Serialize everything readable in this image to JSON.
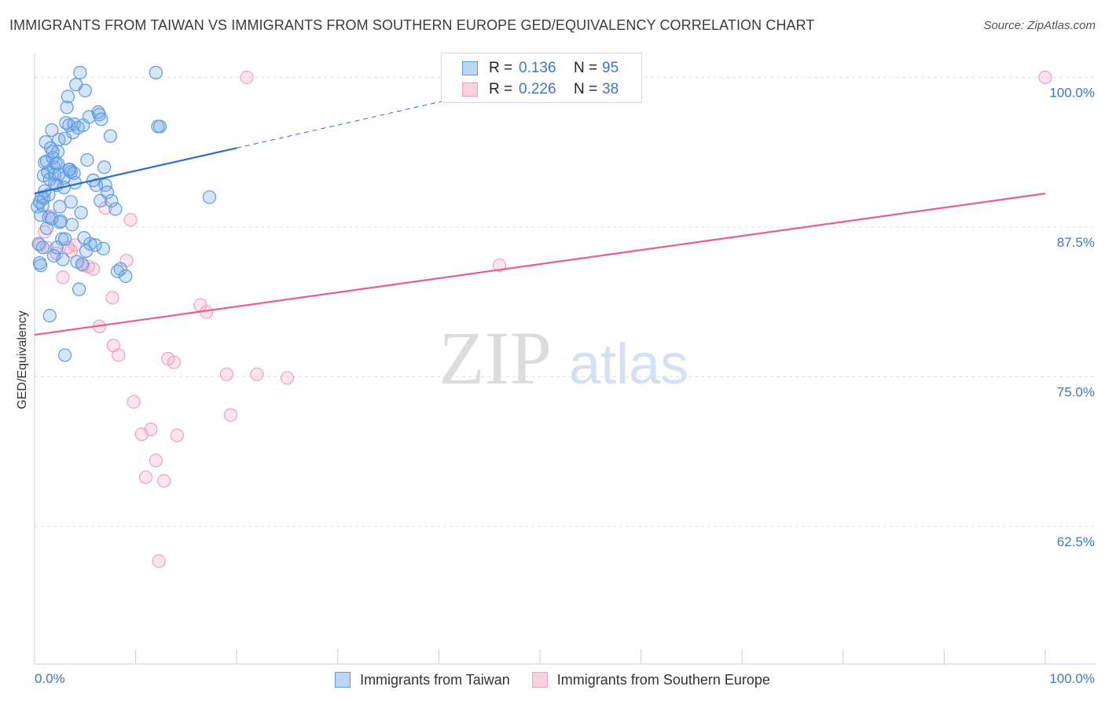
{
  "title": "IMMIGRANTS FROM TAIWAN VS IMMIGRANTS FROM SOUTHERN EUROPE GED/EQUIVALENCY CORRELATION CHART",
  "source": "Source: ZipAtlas.com",
  "watermark": {
    "zip": "ZIP",
    "atlas": "atlas"
  },
  "colors": {
    "taiwan": "#5b9be8",
    "taiwan_line": "#2a6fcc",
    "southern_europe": "#f2a0ba",
    "southern_europe_line": "#e5608e",
    "tick_label": "#3f77c8",
    "grid": "#e0e0e0"
  },
  "stats": [
    {
      "r_label": "R =",
      "r_value": "0.136",
      "n_label": "N =",
      "n_value": "95"
    },
    {
      "r_label": "R =",
      "r_value": "0.226",
      "n_label": "N =",
      "n_value": "38"
    }
  ],
  "legend": [
    "Immigrants from Taiwan",
    "Immigrants from Southern Europe"
  ],
  "chart_data": {
    "type": "scatter",
    "title": "IMMIGRANTS FROM TAIWAN VS IMMIGRANTS FROM SOUTHERN EUROPE GED/EQUIVALENCY CORRELATION CHART",
    "xlabel": "",
    "ylabel": "GED/Equivalency",
    "xlim": [
      0,
      100
    ],
    "ylim": [
      51,
      102
    ],
    "x_tick_labels": [
      "0.0%",
      "100.0%"
    ],
    "y_ticks": [
      62.5,
      75.0,
      87.5,
      100.0
    ],
    "y_tick_labels": [
      "62.5%",
      "75.0%",
      "87.5%",
      "100.0%"
    ],
    "grid": true,
    "legend_position": "bottom",
    "series": [
      {
        "name": "Immigrants from Taiwan",
        "trend": {
          "x": [
            0,
            20
          ],
          "y": [
            90.3,
            94.1
          ],
          "dashed_extension_to": [
            45,
            98.9
          ]
        },
        "points": [
          [
            0.3,
            89.2
          ],
          [
            0.5,
            84.5
          ],
          [
            0.4,
            86.1
          ],
          [
            0.6,
            88.5
          ],
          [
            0.7,
            90.0
          ],
          [
            0.8,
            89.3
          ],
          [
            0.9,
            91.8
          ],
          [
            1.0,
            92.9
          ],
          [
            1.1,
            94.6
          ],
          [
            1.2,
            93.0
          ],
          [
            1.3,
            92.1
          ],
          [
            1.4,
            88.3
          ],
          [
            1.5,
            91.5
          ],
          [
            1.6,
            94.1
          ],
          [
            1.7,
            95.6
          ],
          [
            1.8,
            93.3
          ],
          [
            1.9,
            92.5
          ],
          [
            2.0,
            91.9
          ],
          [
            2.1,
            92.8
          ],
          [
            2.2,
            91.0
          ],
          [
            2.3,
            93.8
          ],
          [
            2.4,
            94.8
          ],
          [
            2.5,
            89.2
          ],
          [
            2.6,
            88.0
          ],
          [
            2.7,
            86.5
          ],
          [
            2.8,
            84.8
          ],
          [
            2.9,
            91.6
          ],
          [
            3.0,
            94.9
          ],
          [
            3.1,
            96.2
          ],
          [
            3.2,
            97.5
          ],
          [
            3.3,
            98.4
          ],
          [
            3.4,
            96.0
          ],
          [
            3.5,
            92.3
          ],
          [
            3.6,
            89.6
          ],
          [
            3.7,
            87.7
          ],
          [
            3.8,
            95.4
          ],
          [
            3.9,
            96.1
          ],
          [
            4.1,
            99.4
          ],
          [
            4.0,
            91.2
          ],
          [
            4.3,
            95.8
          ],
          [
            4.5,
            100.4
          ],
          [
            4.6,
            88.7
          ],
          [
            4.8,
            96.0
          ],
          [
            5.0,
            98.9
          ],
          [
            5.2,
            93.1
          ],
          [
            5.5,
            86.1
          ],
          [
            5.8,
            91.4
          ],
          [
            6.0,
            86.0
          ],
          [
            6.3,
            97.1
          ],
          [
            6.5,
            89.7
          ],
          [
            6.8,
            85.7
          ],
          [
            7.0,
            91.0
          ],
          [
            7.2,
            90.4
          ],
          [
            7.5,
            95.1
          ],
          [
            8.0,
            89.0
          ],
          [
            8.5,
            84.0
          ],
          [
            9.0,
            83.4
          ],
          [
            12.0,
            100.4
          ],
          [
            12.2,
            95.9
          ],
          [
            12.4,
            95.9
          ],
          [
            17.3,
            90.0
          ],
          [
            1.5,
            80.1
          ],
          [
            3.0,
            76.8
          ],
          [
            4.4,
            82.3
          ],
          [
            0.6,
            84.3
          ],
          [
            1.9,
            85.1
          ],
          [
            2.2,
            85.8
          ],
          [
            3.0,
            86.5
          ],
          [
            2.5,
            87.9
          ],
          [
            1.2,
            87.4
          ],
          [
            0.9,
            89.9
          ],
          [
            0.5,
            89.6
          ],
          [
            1.8,
            93.8
          ],
          [
            2.3,
            92.8
          ],
          [
            3.4,
            92.3
          ],
          [
            2.9,
            90.8
          ],
          [
            4.9,
            86.6
          ],
          [
            5.4,
            96.7
          ],
          [
            6.4,
            96.9
          ],
          [
            6.6,
            96.5
          ],
          [
            6.9,
            92.5
          ],
          [
            8.2,
            83.8
          ],
          [
            3.6,
            92.1
          ],
          [
            1.4,
            90.2
          ],
          [
            2.0,
            91.1
          ],
          [
            4.2,
            84.6
          ],
          [
            1.7,
            88.2
          ],
          [
            5.1,
            85.5
          ],
          [
            0.8,
            85.8
          ],
          [
            7.6,
            89.7
          ],
          [
            2.4,
            91.9
          ],
          [
            3.9,
            92.0
          ],
          [
            1.0,
            90.5
          ],
          [
            4.7,
            84.4
          ],
          [
            6.1,
            91.0
          ]
        ]
      },
      {
        "name": "Immigrants from Southern Europe",
        "trend": {
          "x": [
            0,
            100
          ],
          "y": [
            78.5,
            90.3
          ]
        },
        "points": [
          [
            0.5,
            86.0
          ],
          [
            1.0,
            87.1
          ],
          [
            1.2,
            85.8
          ],
          [
            1.6,
            88.4
          ],
          [
            2.2,
            85.3
          ],
          [
            2.8,
            83.3
          ],
          [
            3.3,
            85.8
          ],
          [
            3.6,
            85.5
          ],
          [
            4.0,
            86.0
          ],
          [
            4.8,
            84.3
          ],
          [
            5.3,
            84.2
          ],
          [
            5.8,
            84.0
          ],
          [
            6.4,
            79.2
          ],
          [
            7.0,
            89.1
          ],
          [
            7.7,
            81.6
          ],
          [
            7.8,
            77.6
          ],
          [
            8.3,
            76.8
          ],
          [
            9.1,
            84.7
          ],
          [
            9.5,
            88.1
          ],
          [
            9.8,
            72.9
          ],
          [
            10.6,
            70.2
          ],
          [
            11.0,
            66.6
          ],
          [
            11.5,
            70.6
          ],
          [
            12.0,
            68.0
          ],
          [
            12.3,
            59.6
          ],
          [
            12.8,
            66.3
          ],
          [
            13.2,
            76.5
          ],
          [
            13.8,
            76.2
          ],
          [
            14.1,
            70.1
          ],
          [
            16.4,
            81.0
          ],
          [
            17.0,
            80.4
          ],
          [
            19.0,
            75.2
          ],
          [
            19.4,
            71.8
          ],
          [
            21.0,
            100.0
          ],
          [
            22.0,
            75.2
          ],
          [
            25.0,
            74.9
          ],
          [
            46.0,
            84.3
          ],
          [
            100.0,
            100.0
          ]
        ]
      }
    ]
  }
}
